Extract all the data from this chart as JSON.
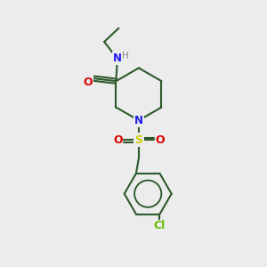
{
  "bg_color": "#ECECEC",
  "bond_color": "#2d5a2d",
  "N_color": "#1a1aee",
  "O_color": "#dd0000",
  "S_color": "#cccc00",
  "Cl_color": "#66bb00",
  "H_color": "#888888",
  "line_width": 1.5,
  "fig_size": [
    3.0,
    3.0
  ],
  "dpi": 100,
  "xlim": [
    0,
    10
  ],
  "ylim": [
    0,
    10
  ]
}
